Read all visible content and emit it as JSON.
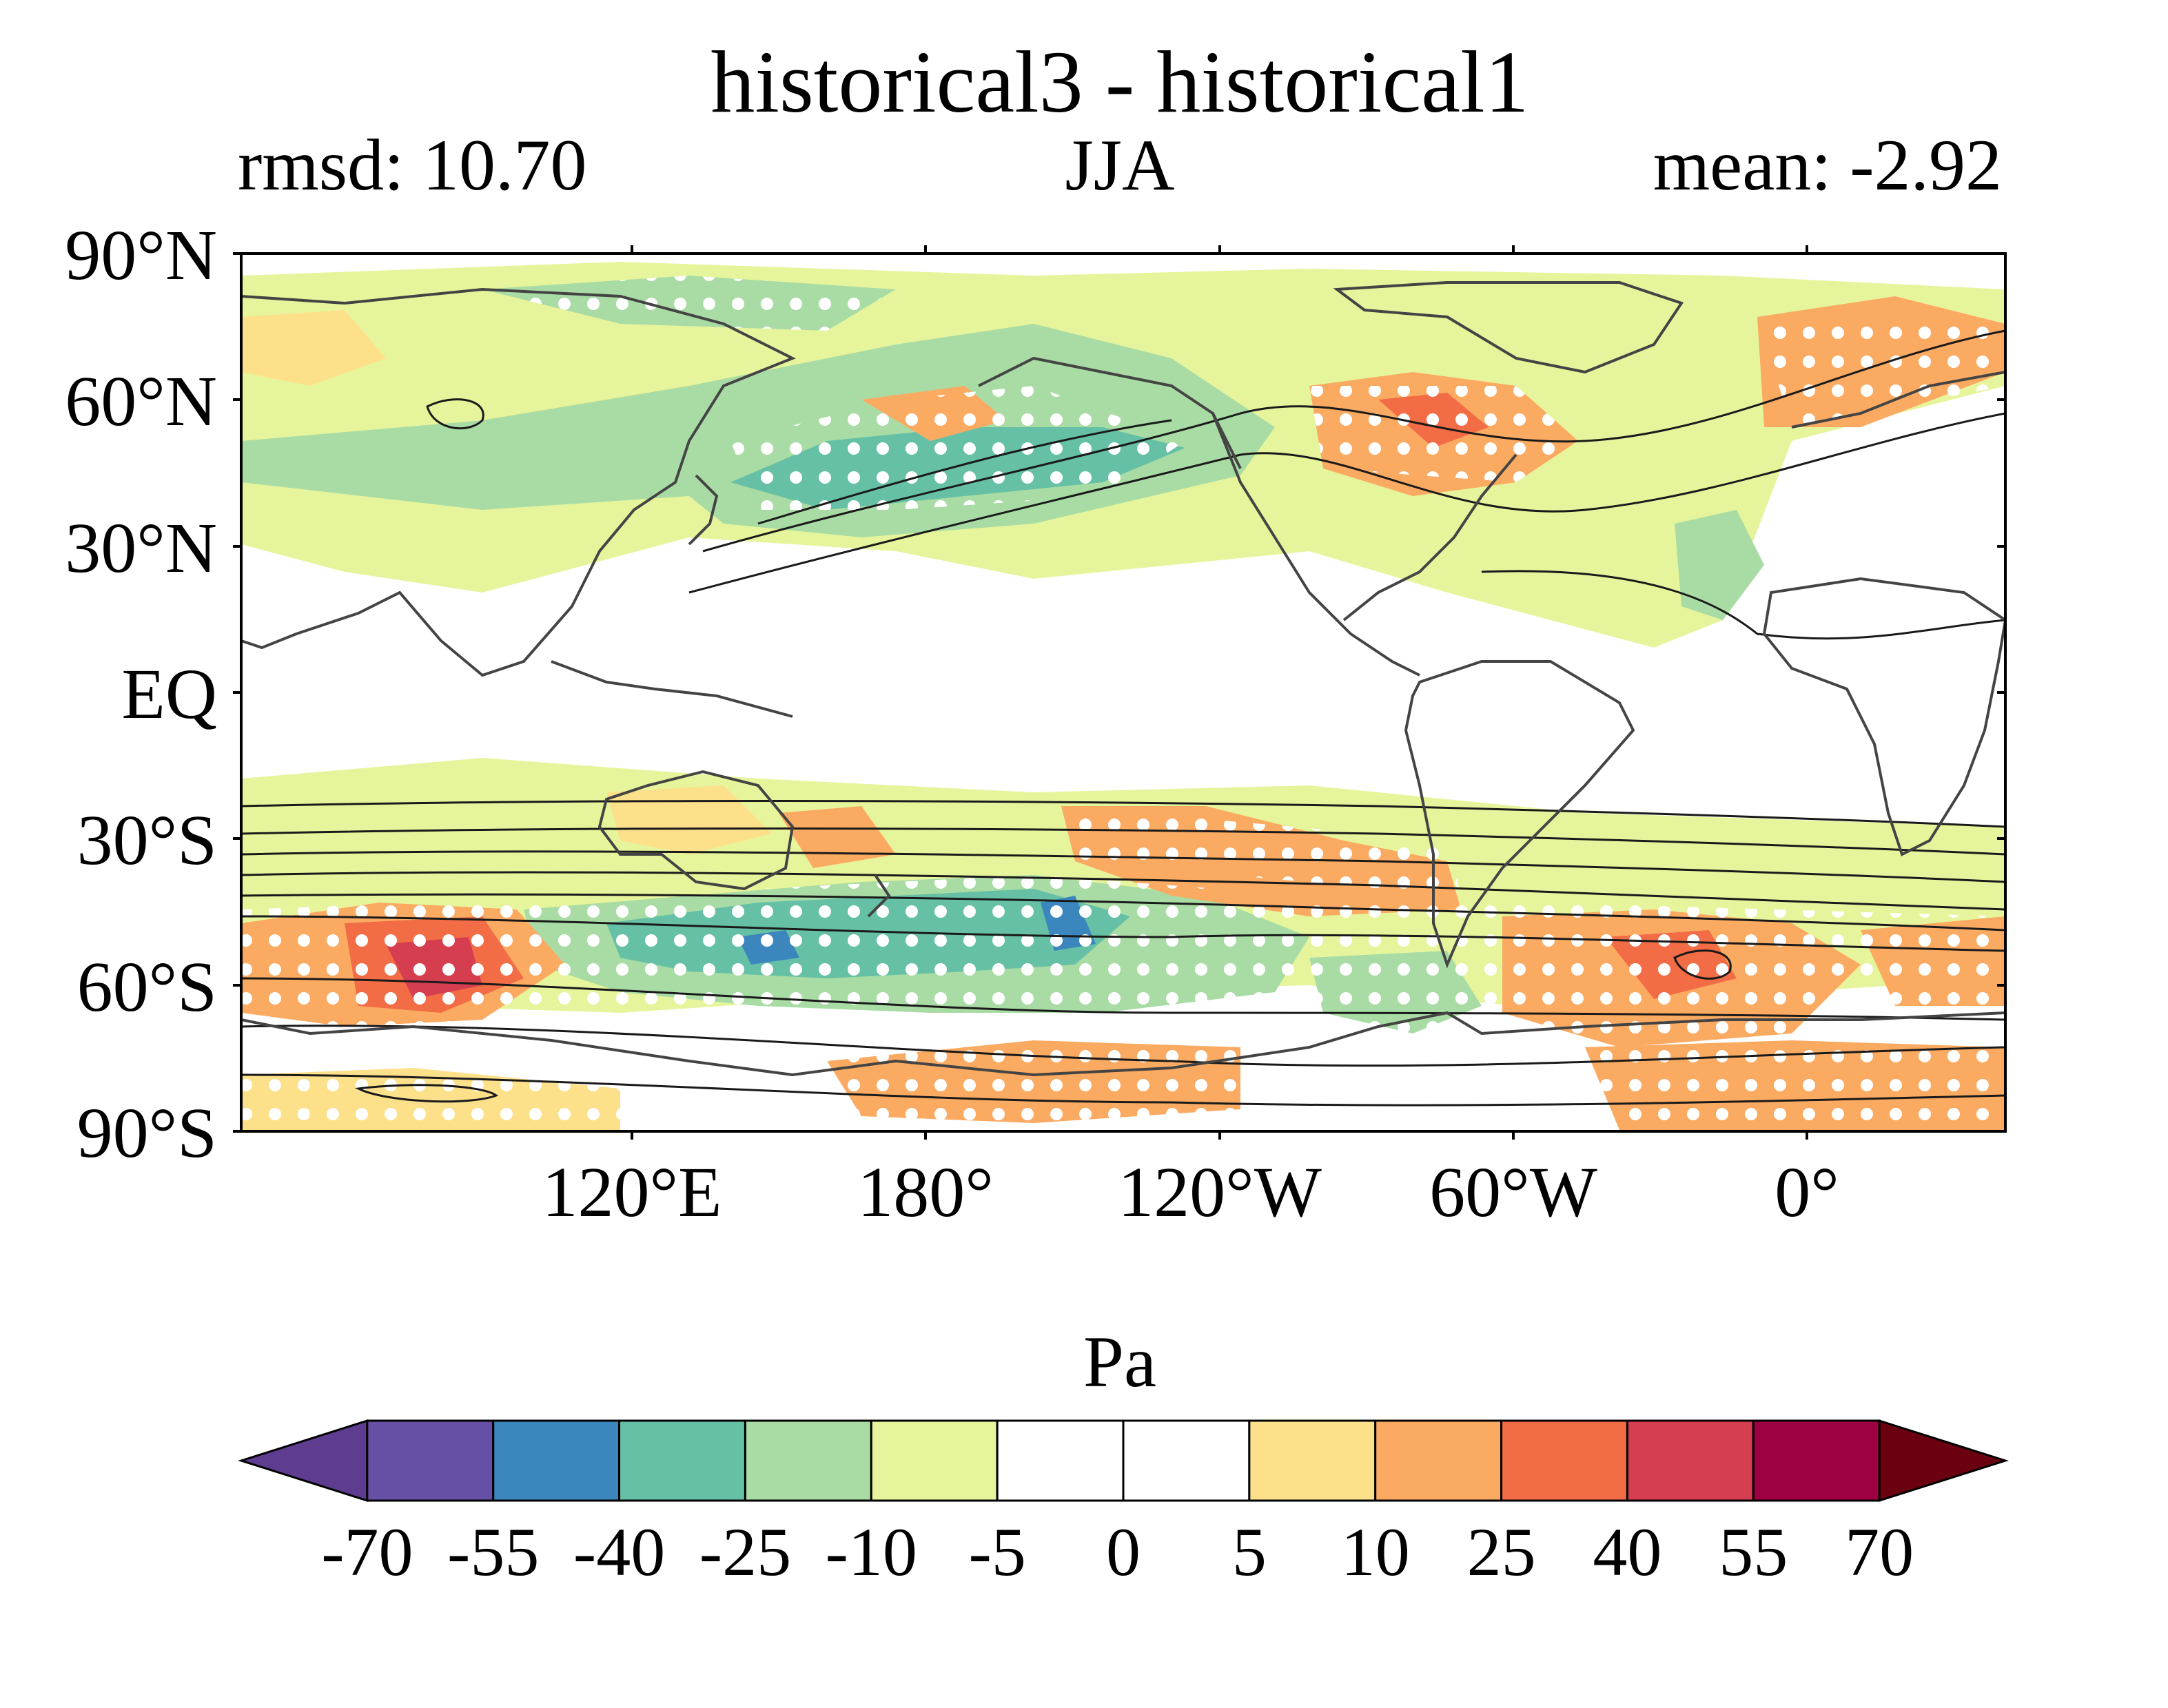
{
  "title": "historical3 - historical1",
  "subtitle_left": "rmsd: 10.70",
  "subtitle_center": "JJA",
  "subtitle_right": "mean: -2.92",
  "y_ticks": [
    "90°N",
    "60°N",
    "30°N",
    "EQ",
    "30°S",
    "60°S",
    "90°S"
  ],
  "x_ticks": [
    "120°E",
    "180°",
    "120°W",
    "60°W",
    "0°"
  ],
  "colorbar": {
    "label": "Pa",
    "ticks": [
      "-70",
      "-55",
      "-40",
      "-25",
      "-10",
      "-5",
      "0",
      "5",
      "10",
      "25",
      "40",
      "55",
      "70"
    ],
    "colors": [
      "#5e3c8f",
      "#6550a5",
      "#3a86bd",
      "#66c0a6",
      "#a9dca4",
      "#e6f59c",
      "#ffffff",
      "#ffffff",
      "#fde08a",
      "#fbaa62",
      "#f26c46",
      "#d53e4f",
      "#9e0142",
      "#6b0010"
    ]
  }
}
